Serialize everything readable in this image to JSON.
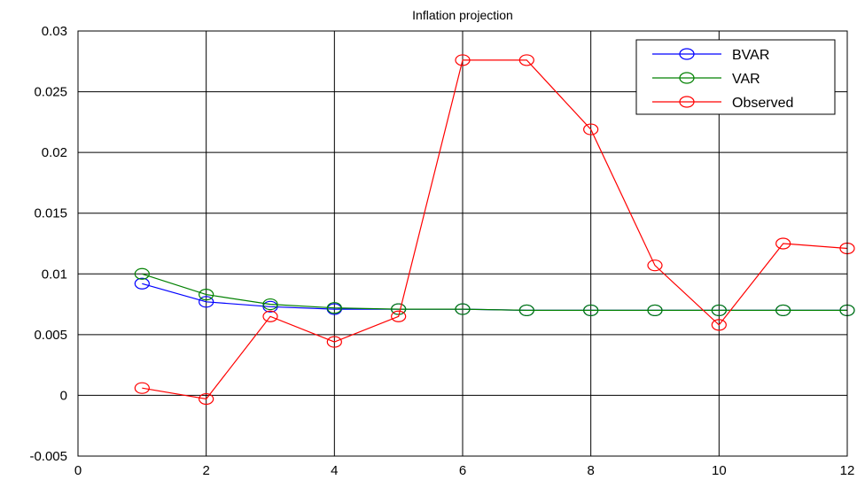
{
  "chart_data": {
    "type": "line",
    "title": "Inflation projection",
    "xlabel": "",
    "ylabel": "",
    "xlim": [
      0,
      12
    ],
    "ylim": [
      -0.005,
      0.03
    ],
    "x_ticks": [
      0,
      2,
      4,
      6,
      8,
      10,
      12
    ],
    "x_tick_labels": [
      "0",
      "2",
      "4",
      "6",
      "8",
      "10",
      "12"
    ],
    "y_ticks": [
      -0.005,
      0,
      0.005,
      0.01,
      0.015,
      0.02,
      0.025,
      0.03
    ],
    "y_tick_labels": [
      "-0.005",
      "0",
      "0.005",
      "0.01",
      "0.015",
      "0.02",
      "0.025",
      "0.03"
    ],
    "grid": true,
    "legend_position": "top-right",
    "marker": "circle",
    "series": [
      {
        "name": "BVAR",
        "color": "#0000ff",
        "x": [
          1,
          2,
          3,
          4,
          5,
          6,
          7,
          8,
          9,
          10,
          11,
          12
        ],
        "y": [
          0.0092,
          0.0077,
          0.0073,
          0.0071,
          0.0071,
          0.0071,
          0.007,
          0.007,
          0.007,
          0.007,
          0.007,
          0.007
        ]
      },
      {
        "name": "VAR",
        "color": "#008000",
        "x": [
          1,
          2,
          3,
          4,
          5,
          6,
          7,
          8,
          9,
          10,
          11,
          12
        ],
        "y": [
          0.01,
          0.0083,
          0.0075,
          0.0072,
          0.0071,
          0.0071,
          0.007,
          0.007,
          0.007,
          0.007,
          0.007,
          0.007
        ]
      },
      {
        "name": "Observed",
        "color": "#ff0000",
        "x": [
          1,
          2,
          3,
          4,
          5,
          6,
          7,
          8,
          9,
          10,
          11,
          12
        ],
        "y": [
          0.0006,
          -0.0003,
          0.0065,
          0.0044,
          0.0065,
          0.0276,
          0.0276,
          0.0219,
          0.0107,
          0.0058,
          0.0125,
          0.0121
        ]
      }
    ]
  }
}
